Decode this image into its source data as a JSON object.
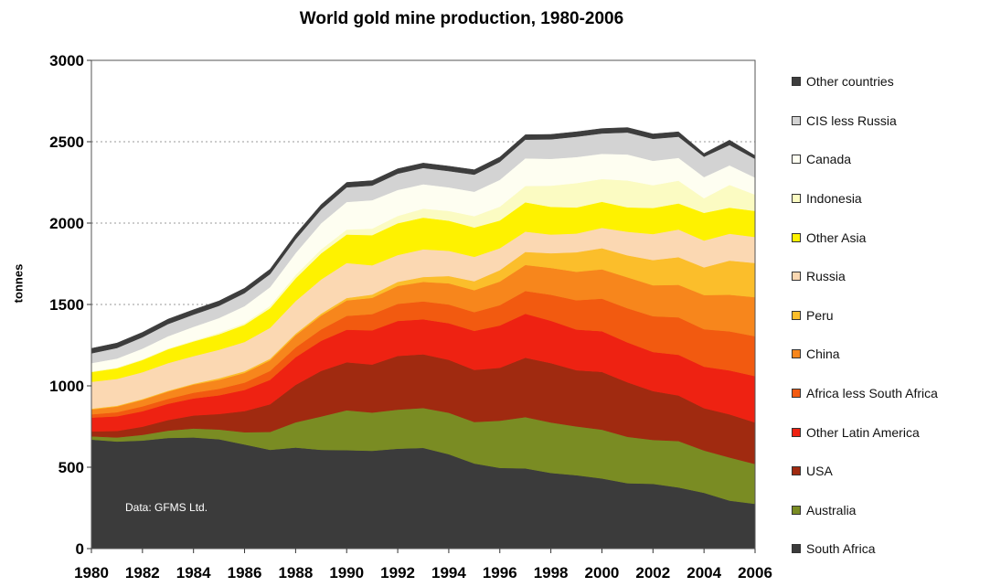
{
  "chart_data": {
    "type": "area",
    "stacked": true,
    "title": "World gold mine production, 1980-2006",
    "ylabel": "tonnes",
    "xlabel": "",
    "ylim": [
      0,
      3000
    ],
    "yticks": [
      0,
      500,
      1000,
      1500,
      2000,
      2500,
      3000
    ],
    "xticks": [
      1980,
      1982,
      1984,
      1986,
      1988,
      1990,
      1992,
      1994,
      1996,
      1998,
      2000,
      2002,
      2004,
      2006
    ],
    "grid": "horizontal dotted",
    "legend_position": "right",
    "annotation": "Data: GFMS Ltd.",
    "x": [
      1980,
      1981,
      1982,
      1983,
      1984,
      1985,
      1986,
      1987,
      1988,
      1989,
      1990,
      1991,
      1992,
      1993,
      1994,
      1995,
      1996,
      1997,
      1998,
      1999,
      2000,
      2001,
      2002,
      2003,
      2004,
      2005,
      2006
    ],
    "series": [
      {
        "name": "South Africa",
        "color": "#3b3b3b",
        "values": [
          670,
          658,
          664,
          680,
          683,
          672,
          640,
          607,
          621,
          607,
          605,
          601,
          614,
          619,
          580,
          523,
          496,
          493,
          465,
          451,
          431,
          402,
          398,
          376,
          343,
          295,
          275
        ]
      },
      {
        "name": "Australia",
        "color": "#7a8c23",
        "values": [
          20,
          25,
          35,
          45,
          55,
          60,
          75,
          110,
          155,
          205,
          245,
          235,
          240,
          245,
          255,
          255,
          290,
          315,
          310,
          300,
          300,
          285,
          270,
          285,
          260,
          265,
          245
        ]
      },
      {
        "name": "USA",
        "color": "#a02a10",
        "values": [
          30,
          40,
          50,
          65,
          80,
          95,
          130,
          170,
          230,
          280,
          295,
          295,
          330,
          330,
          325,
          320,
          325,
          365,
          365,
          345,
          355,
          335,
          300,
          280,
          260,
          265,
          255
        ]
      },
      {
        "name": "Other Latin America",
        "color": "#ee2212",
        "values": [
          85,
          90,
          95,
          100,
          105,
          115,
          130,
          150,
          170,
          185,
          200,
          210,
          215,
          215,
          225,
          240,
          260,
          270,
          260,
          250,
          250,
          245,
          240,
          250,
          255,
          270,
          285
        ]
      },
      {
        "name": "Africa less South Africa",
        "color": "#f25a10",
        "values": [
          20,
          25,
          30,
          30,
          35,
          40,
          45,
          55,
          60,
          70,
          85,
          100,
          105,
          110,
          115,
          115,
          125,
          140,
          160,
          180,
          200,
          210,
          220,
          230,
          230,
          240,
          245
        ]
      },
      {
        "name": "China",
        "color": "#f7861c",
        "values": [
          30,
          35,
          40,
          45,
          50,
          55,
          60,
          65,
          75,
          85,
          95,
          100,
          110,
          120,
          130,
          135,
          145,
          160,
          165,
          175,
          180,
          190,
          190,
          200,
          210,
          225,
          240
        ]
      },
      {
        "name": "Peru",
        "color": "#fbbe2b",
        "values": [
          5,
          5,
          5,
          5,
          5,
          10,
          10,
          10,
          10,
          12,
          15,
          20,
          25,
          30,
          45,
          55,
          70,
          80,
          90,
          120,
          130,
          135,
          155,
          170,
          170,
          210,
          210
        ]
      },
      {
        "name": "Russia",
        "color": "#fbd8b2",
        "values": [
          165,
          165,
          165,
          170,
          170,
          175,
          180,
          190,
          200,
          210,
          215,
          180,
          165,
          170,
          155,
          150,
          135,
          125,
          115,
          115,
          125,
          145,
          160,
          170,
          165,
          165,
          160
        ]
      },
      {
        "name": "Other Asia",
        "color": "#fef200",
        "values": [
          60,
          65,
          75,
          85,
          90,
          95,
          105,
          120,
          140,
          160,
          175,
          185,
          195,
          195,
          185,
          180,
          170,
          180,
          170,
          160,
          160,
          150,
          160,
          160,
          170,
          160,
          160
        ]
      },
      {
        "name": "Indonesia",
        "color": "#fbfbc2",
        "values": [
          5,
          5,
          5,
          5,
          5,
          10,
          10,
          15,
          20,
          25,
          30,
          40,
          45,
          55,
          60,
          70,
          85,
          100,
          130,
          150,
          140,
          165,
          140,
          140,
          90,
          140,
          100
        ]
      },
      {
        "name": "Canada",
        "color": "#fefef1",
        "values": [
          50,
          55,
          65,
          75,
          85,
          90,
          105,
          115,
          135,
          160,
          170,
          175,
          160,
          150,
          145,
          150,
          165,
          170,
          165,
          160,
          155,
          160,
          150,
          140,
          130,
          120,
          105
        ]
      },
      {
        "name": "CIS less Russia",
        "color": "#d3d3d3",
        "values": [
          60,
          65,
          70,
          75,
          75,
          75,
          80,
          80,
          85,
          85,
          90,
          90,
          100,
          100,
          100,
          105,
          110,
          115,
          120,
          125,
          125,
          135,
          135,
          130,
          125,
          125,
          115
        ]
      },
      {
        "name": "Other countries",
        "color": "#3d3d3d",
        "values": [
          30,
          30,
          30,
          30,
          30,
          30,
          30,
          30,
          30,
          30,
          30,
          30,
          30,
          30,
          30,
          30,
          30,
          30,
          30,
          30,
          30,
          30,
          30,
          30,
          20,
          30,
          20
        ]
      }
    ]
  }
}
